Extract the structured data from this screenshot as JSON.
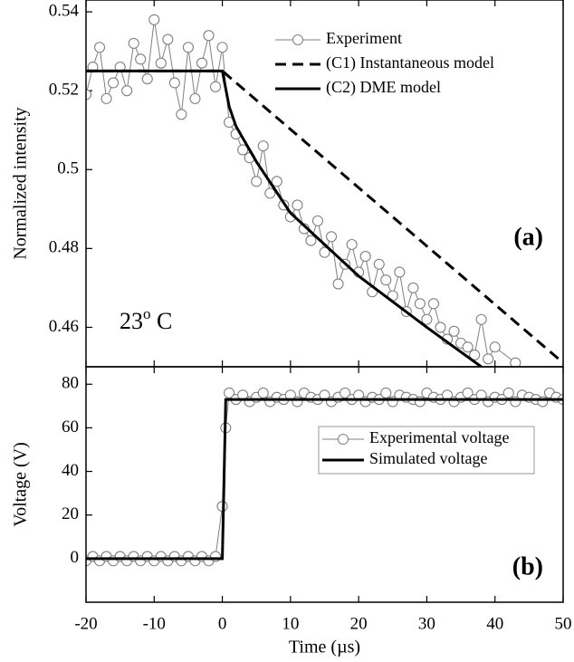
{
  "chart_data": [
    {
      "type": "line",
      "ylabel": "Normalized intensity",
      "panel_label": "(a)",
      "annotation": [
        "23",
        "o",
        " C"
      ],
      "xlim": [
        -20,
        50
      ],
      "xticks": [
        -20,
        -10,
        0,
        10,
        20,
        30,
        40,
        50
      ],
      "ylim": [
        0.45,
        0.543
      ],
      "yticks": [
        0.46,
        0.48,
        0.5,
        0.52,
        0.54
      ],
      "legend": "top-right",
      "legend_box": false,
      "series": [
        {
          "name": "Experiment",
          "color": "#808080",
          "line_style": "solid",
          "marker": "circle",
          "x": [
            -20,
            -19,
            -18,
            -17,
            -16,
            -15,
            -14,
            -13,
            -12,
            -11,
            -10,
            -9,
            -8,
            -7,
            -6,
            -5,
            -4,
            -3,
            -2,
            -1,
            0,
            1,
            2,
            3,
            4,
            5,
            6,
            7,
            8,
            9,
            10,
            11,
            12,
            13,
            14,
            15,
            16,
            17,
            18,
            19,
            20,
            21,
            22,
            23,
            24,
            25,
            26,
            27,
            28,
            29,
            30,
            31,
            32,
            33,
            34,
            35,
            36,
            37,
            38,
            39,
            40,
            43
          ],
          "values": [
            0.519,
            0.526,
            0.531,
            0.518,
            0.522,
            0.526,
            0.52,
            0.532,
            0.528,
            0.523,
            0.538,
            0.527,
            0.533,
            0.522,
            0.514,
            0.531,
            0.518,
            0.527,
            0.534,
            0.521,
            0.531,
            0.512,
            0.509,
            0.505,
            0.503,
            0.497,
            0.506,
            0.494,
            0.497,
            0.491,
            0.488,
            0.491,
            0.485,
            0.482,
            0.487,
            0.479,
            0.483,
            0.471,
            0.476,
            0.481,
            0.474,
            0.478,
            0.469,
            0.476,
            0.472,
            0.468,
            0.474,
            0.464,
            0.47,
            0.466,
            0.462,
            0.466,
            0.46,
            0.457,
            0.459,
            0.456,
            0.455,
            0.453,
            0.462,
            0.452,
            0.455,
            0.451
          ]
        },
        {
          "name": "(C1) Instantaneous model",
          "color": "#000000",
          "line_style": "dashed",
          "marker": "none",
          "x": [
            -20,
            0,
            50
          ],
          "values": [
            0.525,
            0.525,
            0.451
          ]
        },
        {
          "name": "(C2) DME model",
          "color": "#000000",
          "line_style": "solid",
          "marker": "none",
          "x": [
            -20,
            0,
            1,
            2,
            5,
            10,
            20,
            30,
            38
          ],
          "values": [
            0.525,
            0.525,
            0.516,
            0.511,
            0.502,
            0.489,
            0.473,
            0.46,
            0.45
          ]
        }
      ]
    },
    {
      "type": "line",
      "ylabel": "Voltage (V)",
      "xlabel": "Time (µs)",
      "panel_label": "(b)",
      "xlim": [
        -20,
        50
      ],
      "xticks": [
        -20,
        -10,
        0,
        10,
        20,
        30,
        40,
        50
      ],
      "ylim": [
        -20,
        88
      ],
      "yticks": [
        0,
        20,
        40,
        60,
        80
      ],
      "legend": "center-right",
      "legend_box": true,
      "series": [
        {
          "name": "Experimental voltage",
          "color": "#808080",
          "line_style": "solid",
          "marker": "circle",
          "x": [
            -20,
            -19,
            -18,
            -17,
            -16,
            -15,
            -14,
            -13,
            -12,
            -11,
            -10,
            -9,
            -8,
            -7,
            -6,
            -5,
            -4,
            -3,
            -2,
            -1,
            0,
            0.5,
            1,
            2,
            3,
            4,
            5,
            6,
            7,
            8,
            9,
            10,
            11,
            12,
            13,
            14,
            15,
            16,
            17,
            18,
            19,
            20,
            21,
            22,
            23,
            24,
            25,
            26,
            27,
            28,
            29,
            30,
            31,
            32,
            33,
            34,
            35,
            36,
            37,
            38,
            39,
            40,
            41,
            42,
            43,
            44,
            45,
            46,
            47,
            48,
            49,
            50
          ],
          "values": [
            -1,
            1,
            -1,
            1,
            -1,
            1,
            -1,
            1,
            -1,
            1,
            -1,
            1,
            -1,
            1,
            -1,
            1,
            -1,
            1,
            -1,
            1,
            24,
            60,
            76,
            73,
            75,
            72,
            74,
            76,
            72,
            74,
            73,
            75,
            72,
            76,
            74,
            73,
            75,
            72,
            74,
            76,
            73,
            75,
            72,
            74,
            73,
            76,
            72,
            75,
            74,
            73,
            72,
            76,
            74,
            73,
            75,
            72,
            74,
            76,
            73,
            75,
            72,
            74,
            73,
            76,
            72,
            75,
            74,
            73,
            72,
            76,
            74,
            73
          ]
        },
        {
          "name": "Simulated voltage",
          "color": "#000000",
          "line_style": "solid",
          "marker": "none",
          "x": [
            -20,
            0,
            0.5,
            50
          ],
          "values": [
            0,
            0,
            73,
            73
          ]
        }
      ]
    }
  ]
}
